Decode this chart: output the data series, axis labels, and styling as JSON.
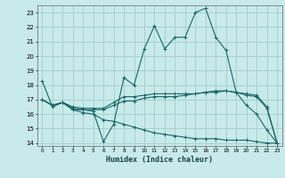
{
  "xlabel": "Humidex (Indice chaleur)",
  "bg_color": "#c8eaea",
  "grid_color": "#aad0d0",
  "line_color": "#1a6666",
  "ylim": [
    13.8,
    23.5
  ],
  "xlim": [
    -0.5,
    23.5
  ],
  "yticks": [
    14,
    15,
    16,
    17,
    18,
    19,
    20,
    21,
    22,
    23
  ],
  "xticks": [
    0,
    1,
    2,
    3,
    4,
    5,
    6,
    7,
    8,
    9,
    10,
    11,
    12,
    13,
    14,
    15,
    16,
    17,
    18,
    19,
    20,
    21,
    22,
    23
  ],
  "series": [
    {
      "x": [
        0,
        1,
        2,
        3,
        4,
        5,
        6,
        7,
        8,
        9,
        10,
        11,
        12,
        13,
        14,
        15,
        16,
        17,
        18,
        19,
        20,
        21,
        22,
        23
      ],
      "y": [
        18.3,
        16.5,
        16.8,
        16.3,
        16.3,
        16.2,
        14.1,
        15.3,
        18.5,
        18.0,
        20.5,
        22.1,
        20.5,
        21.3,
        21.3,
        23.0,
        23.3,
        21.3,
        20.4,
        17.5,
        16.6,
        16.0,
        14.9,
        14.0
      ]
    },
    {
      "x": [
        0,
        1,
        2,
        3,
        4,
        5,
        6,
        7,
        8,
        9,
        10,
        11,
        12,
        13,
        14,
        15,
        16,
        17,
        18,
        19,
        20,
        21,
        22,
        23
      ],
      "y": [
        17.0,
        16.6,
        16.8,
        16.4,
        16.3,
        16.3,
        16.3,
        16.6,
        16.9,
        16.9,
        17.1,
        17.2,
        17.2,
        17.2,
        17.3,
        17.4,
        17.5,
        17.6,
        17.6,
        17.5,
        17.4,
        17.3,
        16.5,
        14.0
      ]
    },
    {
      "x": [
        0,
        1,
        2,
        3,
        4,
        5,
        6,
        7,
        8,
        9,
        10,
        11,
        12,
        13,
        14,
        15,
        16,
        17,
        18,
        19,
        20,
        21,
        22,
        23
      ],
      "y": [
        17.0,
        16.6,
        16.8,
        16.5,
        16.4,
        16.4,
        16.4,
        16.8,
        17.2,
        17.2,
        17.3,
        17.4,
        17.4,
        17.4,
        17.4,
        17.4,
        17.5,
        17.5,
        17.6,
        17.5,
        17.3,
        17.2,
        16.4,
        14.0
      ]
    },
    {
      "x": [
        0,
        1,
        2,
        3,
        4,
        5,
        6,
        7,
        8,
        9,
        10,
        11,
        12,
        13,
        14,
        15,
        16,
        17,
        18,
        19,
        20,
        21,
        22,
        23
      ],
      "y": [
        17.0,
        16.6,
        16.8,
        16.3,
        16.1,
        16.0,
        15.6,
        15.5,
        15.3,
        15.1,
        14.9,
        14.7,
        14.6,
        14.5,
        14.4,
        14.3,
        14.3,
        14.3,
        14.2,
        14.2,
        14.2,
        14.1,
        14.0,
        14.0
      ]
    }
  ]
}
